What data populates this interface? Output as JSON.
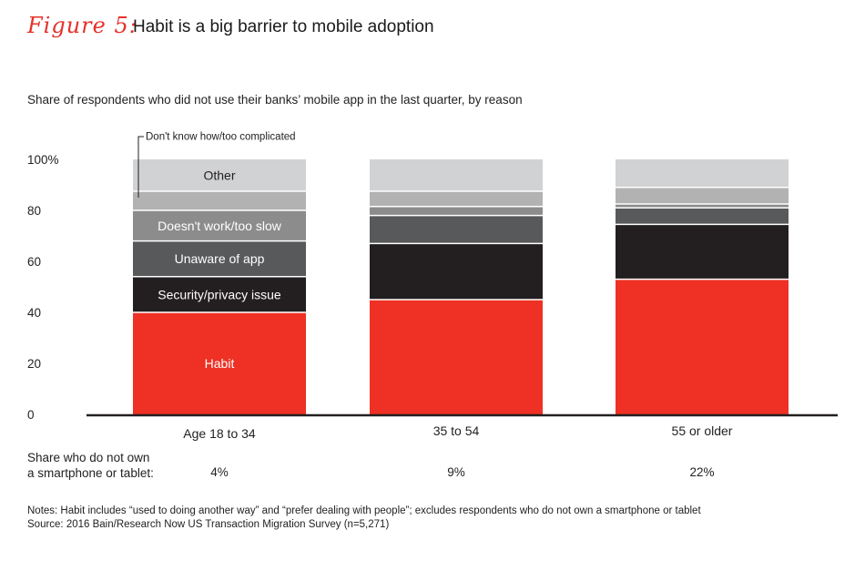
{
  "figure": {
    "label": "Figure 5:",
    "title": "Habit is a big barrier to mobile adoption",
    "subtitle": "Share of respondents who did not use their banks’ mobile app in the last quarter, by reason"
  },
  "chart_data": {
    "type": "bar",
    "stacked": true,
    "categories": [
      "Age 18 to 34",
      "35 to 54",
      "55 or older"
    ],
    "ylim": [
      0,
      100
    ],
    "yticks": [
      "0",
      "20",
      "40",
      "60",
      "80",
      "100%"
    ],
    "series": [
      {
        "name": "Habit",
        "color": "#ee3124",
        "label_color": "#ffffff",
        "values": [
          40,
          45,
          53
        ]
      },
      {
        "name": "Security/privacy issue",
        "color": "#231f20",
        "label_color": "#ffffff",
        "values": [
          14,
          22,
          21.5
        ]
      },
      {
        "name": "Unaware of app",
        "color": "#58595b",
        "label_color": "#ffffff",
        "values": [
          14,
          11,
          6.5
        ]
      },
      {
        "name": "Doesn't work/too slow",
        "color": "#8c8c8c",
        "label_color": "#ffffff",
        "values": [
          12,
          3.5,
          1.5
        ]
      },
      {
        "name": "Don't know how/too complicated",
        "color": "#b2b2b2",
        "label_color": "#231f20",
        "values": [
          7.5,
          6,
          6.5
        ]
      },
      {
        "name": "Other",
        "color": "#d1d2d4",
        "label_color": "#231f20",
        "values": [
          12.5,
          12.5,
          11
        ]
      }
    ],
    "segment_labels": [
      "Habit",
      "Security/privacy issue",
      "Unaware of app",
      "Doesn't work/too slow",
      "",
      "Other"
    ],
    "callout_label": "Don't know how/too complicated"
  },
  "share_row": {
    "label_line1": "Share who do not own",
    "label_line2": "a smartphone or tablet:",
    "values": [
      "4%",
      "9%",
      "22%"
    ]
  },
  "notes": {
    "line1": "Notes: Habit includes “used to doing another way” and “prefer dealing with people”; excludes respondents who do not own a smartphone or tablet",
    "line2": "Source: 2016 Bain/Research Now US Transaction Migration Survey (n=5,271)"
  }
}
